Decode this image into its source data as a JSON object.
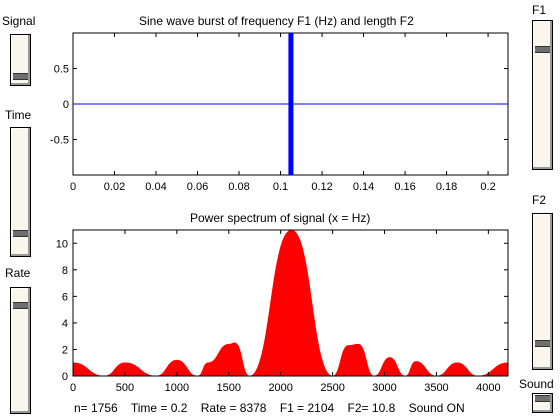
{
  "sliders": {
    "signal": {
      "label": "Signal",
      "value": 0.08
    },
    "time": {
      "label": "Time",
      "value": 0.14
    },
    "rate": {
      "label": "Rate",
      "value": 0.88
    },
    "f1": {
      "label": "F1",
      "value": 0.82
    },
    "f2": {
      "label": "F2",
      "value": 0.14
    },
    "sound": {
      "label": "Sound",
      "value": 1.0
    }
  },
  "top_plot": {
    "title": "Sine wave burst of frequency F1 (Hz) and length F2",
    "y_ticks": [
      "0.5",
      "0",
      "-0.5"
    ],
    "x_ticks": [
      "0",
      "0.02",
      "0.04",
      "0.06",
      "0.08",
      "0.1",
      "0.12",
      "0.14",
      "0.16",
      "0.18",
      "0.2"
    ]
  },
  "bottom_plot": {
    "title": "Power spectrum of signal (x = Hz)",
    "y_ticks": [
      "10",
      "8",
      "6",
      "4",
      "2",
      "0"
    ],
    "x_ticks": [
      "0",
      "500",
      "1000",
      "1500",
      "2000",
      "2500",
      "3000",
      "3500",
      "4000"
    ]
  },
  "status": {
    "n": "n= 1756",
    "time": "Time = 0.2",
    "rate": "Rate = 8378",
    "f1": "F1 = 2104",
    "f2": "F2= 10.8",
    "sound": "Sound ON"
  },
  "chart_data": [
    {
      "type": "line",
      "title": "Sine wave burst of frequency F1 (Hz) and length F2",
      "xlim": [
        0,
        0.2096
      ],
      "ylim": [
        -1,
        1
      ],
      "x": [
        0,
        0.1045,
        0.105,
        0.1055,
        0.2096
      ],
      "y": [
        0,
        0,
        1,
        0,
        0
      ],
      "burst": {
        "center": 0.105,
        "frequency_hz": 2104,
        "length_ms": 10.8
      },
      "colors": {
        "line": "#0000ff"
      }
    },
    {
      "type": "area",
      "title": "Power spectrum of signal (x = Hz)",
      "xlim": [
        0,
        4189
      ],
      "ylim": [
        0,
        11
      ],
      "x": [
        0,
        300,
        500,
        800,
        1000,
        1200,
        1300,
        1500,
        1560,
        1700,
        2104,
        2500,
        2650,
        2750,
        2900,
        3050,
        3200,
        3300,
        3500,
        3700,
        3900,
        4189
      ],
      "y": [
        1.0,
        0,
        1.0,
        0,
        1.2,
        0,
        1.0,
        2.4,
        2.5,
        0,
        11.0,
        0,
        2.3,
        2.4,
        0,
        1.4,
        0,
        1.1,
        0,
        1.0,
        0,
        1.0
      ],
      "colors": {
        "fill": "#ff0000"
      }
    }
  ]
}
